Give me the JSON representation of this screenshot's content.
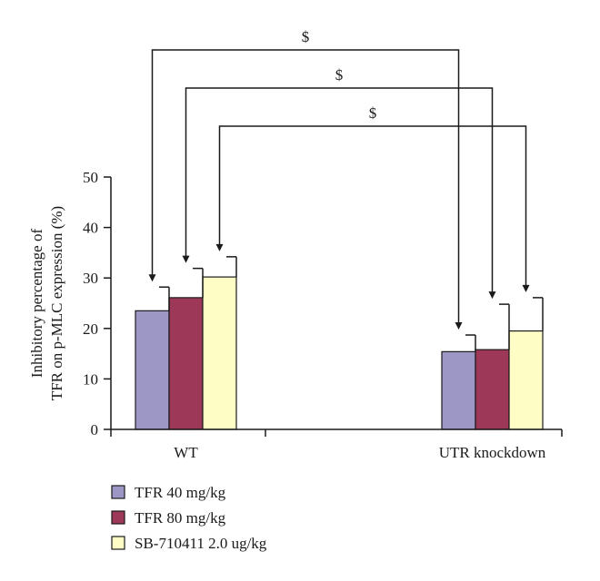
{
  "chart_data": {
    "type": "bar",
    "title": "",
    "xlabel": "",
    "ylabel_lines": [
      "Inhibitory percentage of",
      "TFR on p-MLC expression (%)"
    ],
    "ylim": [
      0,
      50
    ],
    "yticks": [
      0,
      10,
      20,
      30,
      40,
      50
    ],
    "grid": false,
    "legend_position": "bottom-left",
    "categories": [
      "WT",
      "UTR knockdown"
    ],
    "series": [
      {
        "name": "TFR 40 mg/kg",
        "color": "#9d97c6",
        "values": [
          23.5,
          15.4
        ],
        "errors": [
          4.7,
          3.3
        ]
      },
      {
        "name": "TFR 80 mg/kg",
        "color": "#9e3859",
        "values": [
          26.1,
          15.8
        ],
        "errors": [
          5.8,
          9.0
        ]
      },
      {
        "name": "SB-710411 2.0 ug/kg",
        "color": "#fefdc6",
        "values": [
          30.2,
          19.5
        ],
        "errors": [
          4.0,
          6.6
        ]
      }
    ],
    "significance": [
      {
        "label": "$",
        "series": 0
      },
      {
        "label": "$",
        "series": 1
      },
      {
        "label": "$",
        "series": 2
      }
    ]
  }
}
